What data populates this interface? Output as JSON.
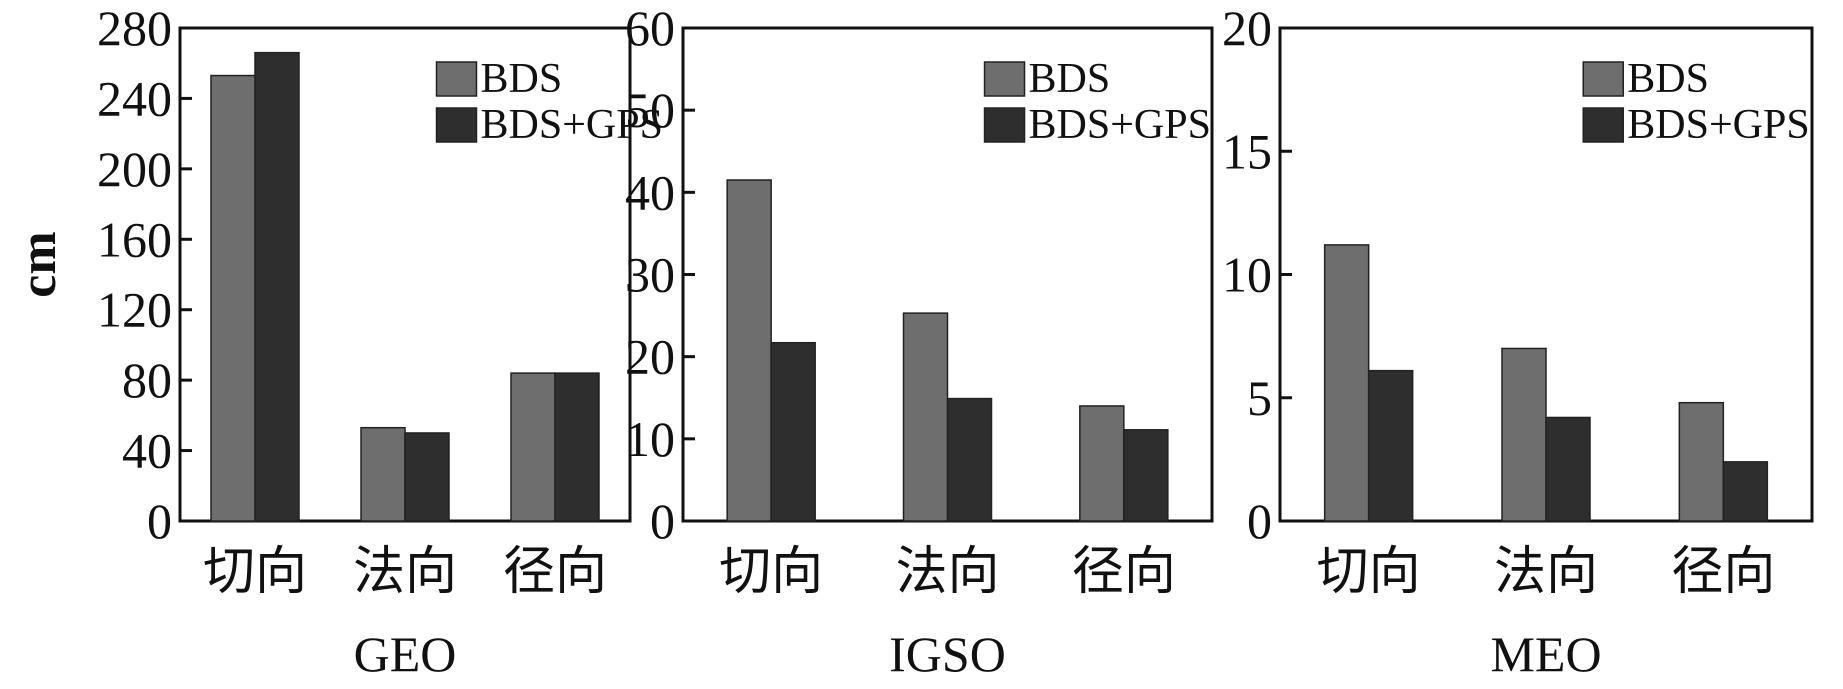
{
  "chart_data": [
    {
      "type": "bar",
      "categories": [
        "切向",
        "法向",
        "径向"
      ],
      "series": [
        {
          "name": "BDS",
          "values": [
            253,
            53,
            84
          ]
        },
        {
          "name": "BDS+GPS",
          "values": [
            266,
            50,
            84
          ]
        }
      ],
      "title": "",
      "xlabel": "GEO",
      "ylabel": "cm",
      "ylim": [
        0,
        280
      ],
      "yticks": [
        0,
        40,
        80,
        120,
        160,
        200,
        240,
        280
      ],
      "legend": "top-right",
      "grid": false
    },
    {
      "type": "bar",
      "categories": [
        "切向",
        "法向",
        "径向"
      ],
      "series": [
        {
          "name": "BDS",
          "values": [
            41.5,
            25.3,
            14.0
          ]
        },
        {
          "name": "BDS+GPS",
          "values": [
            21.7,
            14.9,
            11.1
          ]
        }
      ],
      "title": "",
      "xlabel": "IGSO",
      "ylabel": "",
      "ylim": [
        0,
        60
      ],
      "yticks": [
        0,
        10,
        20,
        30,
        40,
        50,
        60
      ],
      "legend": "top-right",
      "grid": false
    },
    {
      "type": "bar",
      "categories": [
        "切向",
        "法向",
        "径向"
      ],
      "series": [
        {
          "name": "BDS",
          "values": [
            11.2,
            7.0,
            4.8
          ]
        },
        {
          "name": "BDS+GPS",
          "values": [
            6.1,
            4.2,
            2.4
          ]
        }
      ],
      "title": "",
      "xlabel": "MEO",
      "ylabel": "",
      "ylim": [
        0,
        20
      ],
      "yticks": [
        0,
        5,
        10,
        15,
        20
      ],
      "legend": "top-right",
      "grid": false
    }
  ],
  "colors": {
    "BDS": "#6e6e6e",
    "BDS+GPS": "#2e2e2e",
    "axis": "#111111"
  }
}
